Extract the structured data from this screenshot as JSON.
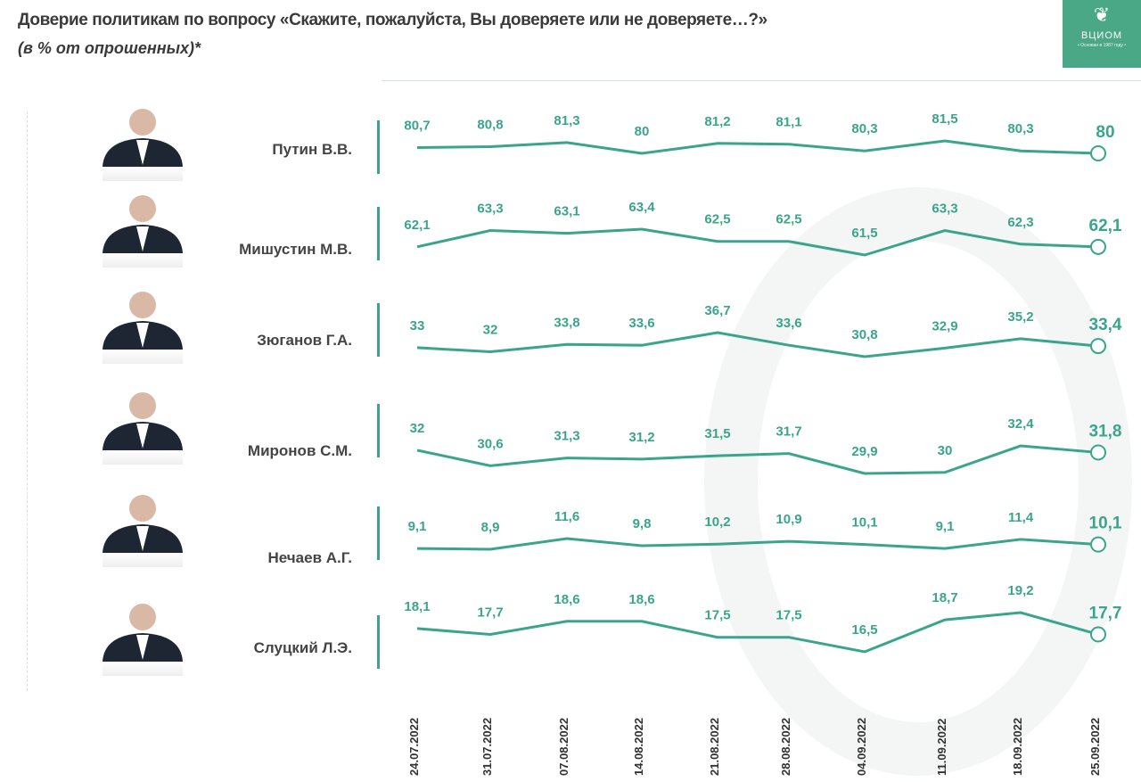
{
  "title": "Доверие политикам по вопросу «Скажите, пожалуйста, Вы доверяете или не доверяете…?»",
  "subtitle": "(в % от опрошенных)*",
  "logo": {
    "text": "ВЦИОМ",
    "tagline": "• Основан в 1987 году •"
  },
  "colors": {
    "line": "#3aa58b",
    "logo_bg": "#4aa886"
  },
  "chart_data": {
    "type": "line",
    "categories": [
      "24.07.2022",
      "31.07.2022",
      "07.08.2022",
      "14.08.2022",
      "21.08.2022",
      "28.08.2022",
      "04.09.2022",
      "11.09.2022",
      "18.09.2022",
      "25.09.2022"
    ],
    "series": [
      {
        "name": "Путин В.В.",
        "values": [
          80.7,
          80.8,
          81.3,
          80,
          81.2,
          81.1,
          80.3,
          81.5,
          80.3,
          80
        ],
        "labels": [
          "80,7",
          "80,8",
          "81,3",
          "80",
          "81,2",
          "81,1",
          "80,3",
          "81,5",
          "80,3",
          "80"
        ]
      },
      {
        "name": "Мишустин М.В.",
        "values": [
          62.1,
          63.3,
          63.1,
          63.4,
          62.5,
          62.5,
          61.5,
          63.3,
          62.3,
          62.1
        ],
        "labels": [
          "62,1",
          "63,3",
          "63,1",
          "63,4",
          "62,5",
          "62,5",
          "61,5",
          "63,3",
          "62,3",
          "62,1"
        ]
      },
      {
        "name": "Зюганов Г.А.",
        "values": [
          33,
          32,
          33.8,
          33.6,
          36.7,
          33.6,
          30.8,
          32.9,
          35.2,
          33.4
        ],
        "labels": [
          "33",
          "32",
          "33,8",
          "33,6",
          "36,7",
          "33,6",
          "30,8",
          "32,9",
          "35,2",
          "33,4"
        ]
      },
      {
        "name": "Миронов С.М.",
        "values": [
          32,
          30.6,
          31.3,
          31.2,
          31.5,
          31.7,
          29.9,
          30,
          32.4,
          31.8
        ],
        "labels": [
          "32",
          "30,6",
          "31,3",
          "31,2",
          "31,5",
          "31,7",
          "29,9",
          "30",
          "32,4",
          "31,8"
        ]
      },
      {
        "name": "Нечаев А.Г.",
        "values": [
          9.1,
          8.9,
          11.6,
          9.8,
          10.2,
          10.9,
          10.1,
          9.1,
          11.4,
          10.1
        ],
        "labels": [
          "9,1",
          "8,9",
          "11,6",
          "9,8",
          "10,2",
          "10,9",
          "10,1",
          "9,1",
          "11,4",
          "10,1"
        ]
      },
      {
        "name": "Слуцкий Л.Э.",
        "values": [
          18.1,
          17.7,
          18.6,
          18.6,
          17.5,
          17.5,
          16.5,
          18.7,
          19.2,
          17.7
        ],
        "labels": [
          "18,1",
          "17,7",
          "18,6",
          "18,6",
          "17,5",
          "17,5",
          "16,5",
          "18,7",
          "19,2",
          "17,7"
        ]
      }
    ],
    "grid": false,
    "legend": "none"
  }
}
